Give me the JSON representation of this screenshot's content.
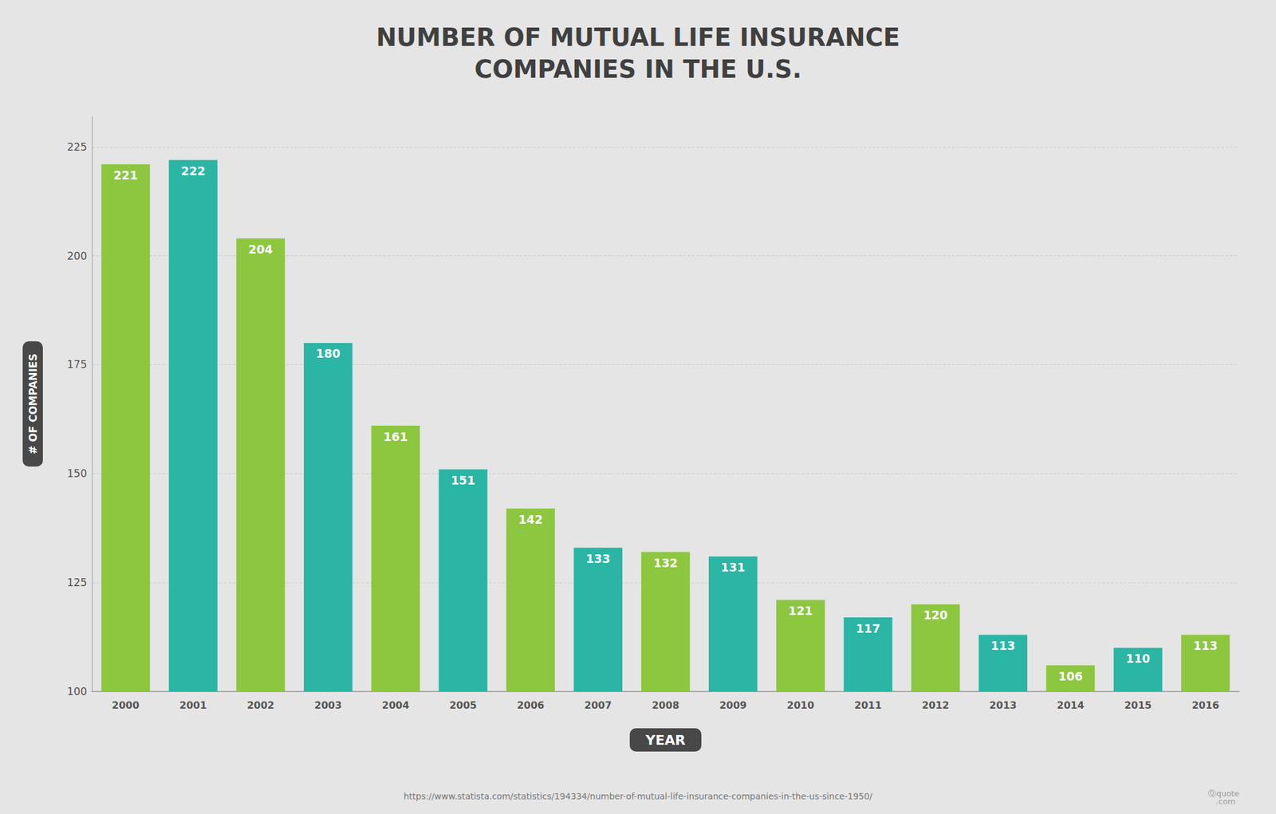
{
  "chart_data": {
    "type": "bar",
    "title": "NUMBER OF MUTUAL LIFE INSURANCE\nCOMPANIES IN THE U.S.",
    "x_label": "YEAR",
    "y_label": "# OF COMPANIES",
    "categories": [
      "2000",
      "2001",
      "2002",
      "2003",
      "2004",
      "2005",
      "2006",
      "2007",
      "2008",
      "2009",
      "2010",
      "2011",
      "2012",
      "2013",
      "2014",
      "2015",
      "2016"
    ],
    "values": [
      221,
      222,
      204,
      180,
      161,
      151,
      142,
      133,
      132,
      131,
      121,
      117,
      120,
      113,
      106,
      110,
      113
    ],
    "colors": [
      "#8dc63f",
      "#2ab5a5",
      "#8dc63f",
      "#2ab5a5",
      "#8dc63f",
      "#2ab5a5",
      "#8dc63f",
      "#2ab5a5",
      "#8dc63f",
      "#2ab5a5",
      "#8dc63f",
      "#2ab5a5",
      "#8dc63f",
      "#2ab5a5",
      "#8dc63f",
      "#2ab5a5",
      "#8dc63f"
    ],
    "ylim": [
      100,
      232
    ],
    "yticks": [
      100,
      125,
      150,
      175,
      200,
      225
    ],
    "grid": true,
    "data_labels": true,
    "annotations": [
      "https://www.statista.com/statistics/194334/number-of-mutual-life-insurance-companies-in-the-us-since-1950/",
      "Ⓠquote\n   .com"
    ]
  }
}
